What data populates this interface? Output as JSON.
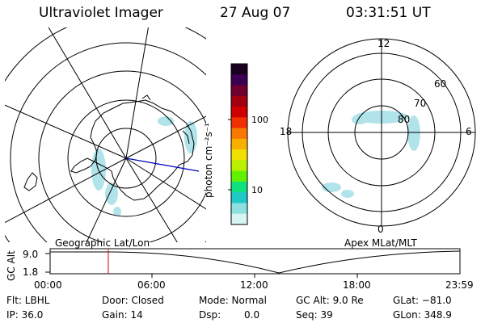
{
  "header": {
    "title": "Ultraviolet Imager",
    "date": "27 Aug 07",
    "time": "03:31:51 UT"
  },
  "geographic_panel": {
    "label": "Geographic Lat/Lon"
  },
  "apex_panel": {
    "label": "Apex MLat/MLT",
    "mlt_labels": {
      "top": "12",
      "bottom": "0",
      "left": "18",
      "right": "6"
    },
    "lat_labels": [
      "60",
      "70",
      "80"
    ]
  },
  "colorbar": {
    "unit_label": "photon cm⁻²s⁻¹",
    "tick_labels": [
      "100",
      "10"
    ],
    "colors": [
      "#1a0020",
      "#3c0050",
      "#6e0030",
      "#a00010",
      "#d00000",
      "#f03000",
      "#f87800",
      "#f8b000",
      "#f0e000",
      "#b8f000",
      "#60f000",
      "#10e080",
      "#20c8c8",
      "#8ce0e0",
      "#d8f4f4"
    ]
  },
  "altitude_plot": {
    "ylabel": "GC Alt",
    "y_ticks": [
      "9.0",
      "1.8"
    ],
    "x_ticks": [
      "00:00",
      "06:00",
      "12:00",
      "18:00",
      "23:59"
    ],
    "marker_color": "#d00000"
  },
  "footer": {
    "filter": "Flt: LBHL",
    "ip": "IP: 36.0",
    "door": "Door: Closed",
    "gain": "Gain: 14",
    "mode": "Mode: Normal",
    "dsp_label": "Dsp:",
    "dsp_value": "0.0",
    "gc_alt": "GC Alt: 9.0 Re",
    "seq": "Seq: 39",
    "glat": "GLat: −81.0",
    "glon": "GLon: 348.9"
  }
}
